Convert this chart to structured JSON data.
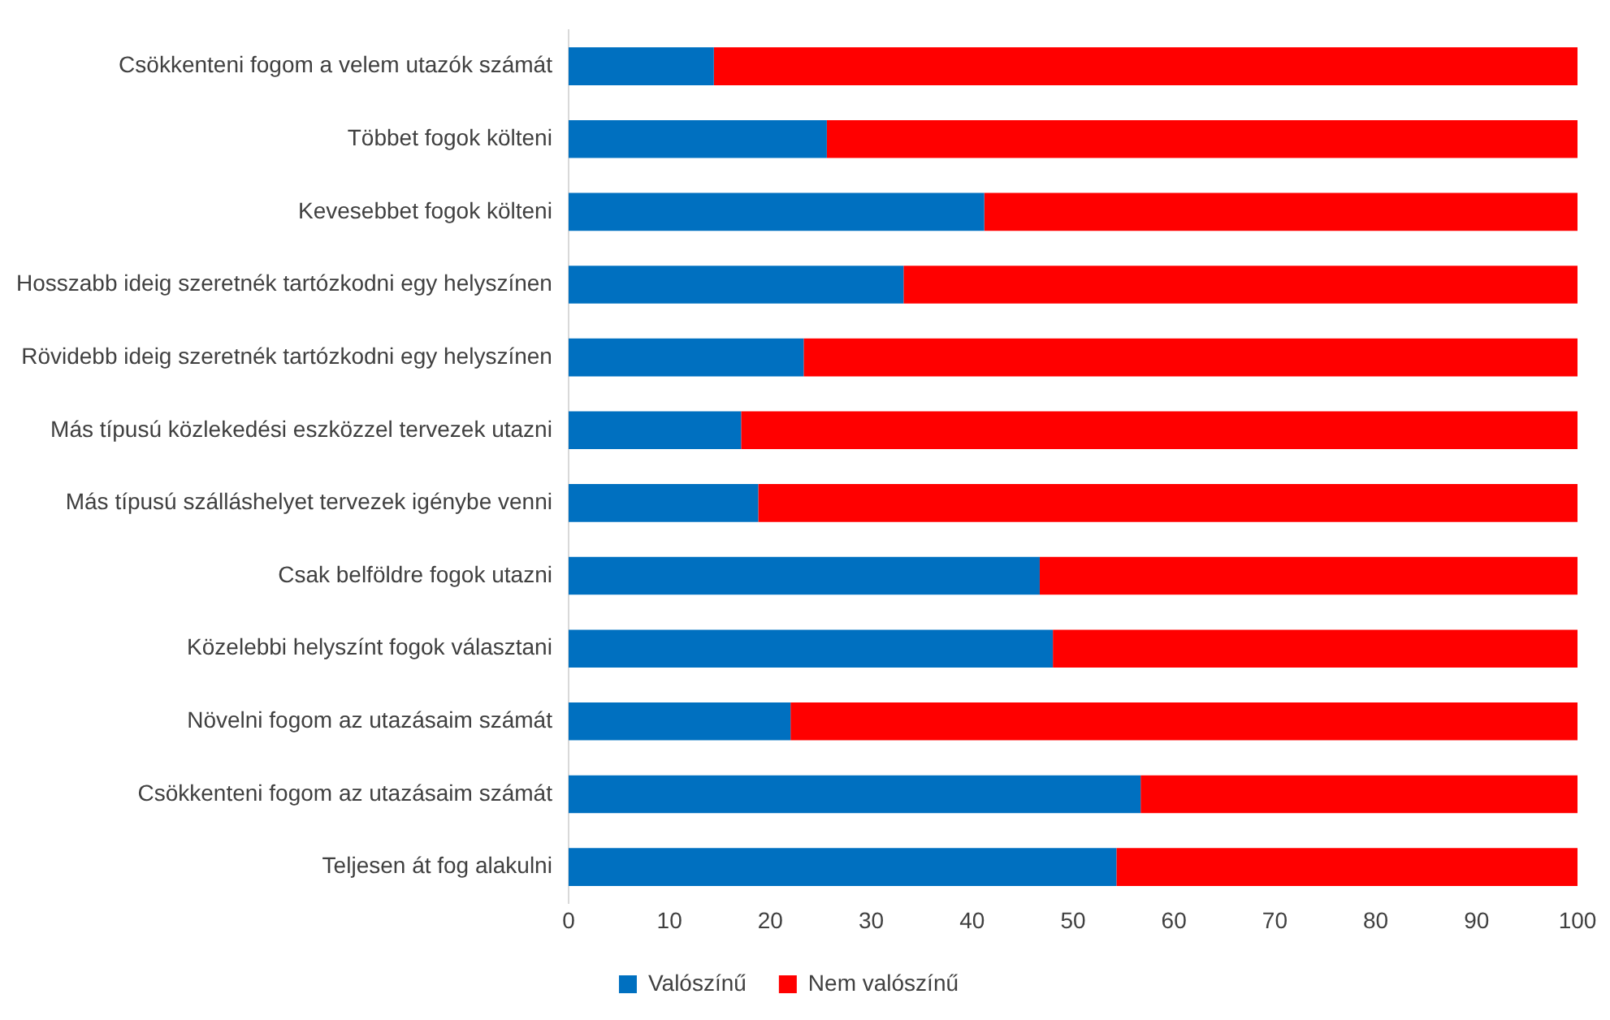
{
  "chart_data": {
    "type": "bar",
    "orientation": "horizontal",
    "stacked": true,
    "categories": [
      "Csökkenteni fogom a velem utazók számát",
      "Többet fogok költeni",
      "Kevesebbet fogok költeni",
      "Hosszabb ideig szeretnék tartózkodni egy helyszínen",
      "Rövidebb ideig szeretnék tartózkodni egy helyszínen",
      "Más típusú közlekedési eszközzel tervezek utazni",
      "Más típusú szálláshelyet tervezek igénybe venni",
      "Csak belföldre fogok utazni",
      "Közelebbi helyszínt fogok választani",
      "Növelni fogom az utazásaim számát",
      "Csökkenteni fogom az utazásaim számát",
      "Teljesen át fog alakulni"
    ],
    "series": [
      {
        "name": "Valószínű",
        "color": "#0070c0",
        "values": [
          14.4,
          25.6,
          41.2,
          33.2,
          23.3,
          17.1,
          18.8,
          46.7,
          48.0,
          22.0,
          56.7,
          54.3
        ]
      },
      {
        "name": "Nem valószínű",
        "color": "#ff0000",
        "values": [
          85.6,
          74.4,
          58.8,
          66.8,
          76.7,
          82.9,
          81.2,
          53.3,
          52.0,
          78.0,
          43.3,
          45.7
        ]
      }
    ],
    "xlim": [
      0,
      100
    ],
    "xticks": [
      0,
      10,
      20,
      30,
      40,
      50,
      60,
      70,
      80,
      90,
      100
    ],
    "grid": false,
    "legend": "bottom"
  }
}
